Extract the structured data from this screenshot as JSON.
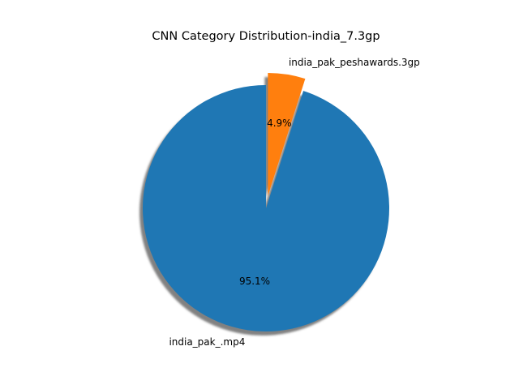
{
  "chart_data": {
    "type": "pie",
    "title": "CNN Category Distribution-india_7.3gp",
    "start_angle_deg": 90,
    "counterclock": false,
    "shadow": true,
    "slices": [
      {
        "label": "india_pak_peshawards.3gp",
        "percent_label": "4.9%",
        "value": 4.9,
        "color": "#ff7f0e",
        "exploded": true
      },
      {
        "label": "india_pak_.mp4",
        "percent_label": "95.1%",
        "value": 95.1,
        "color": "#1f77b4",
        "exploded": false
      }
    ]
  }
}
